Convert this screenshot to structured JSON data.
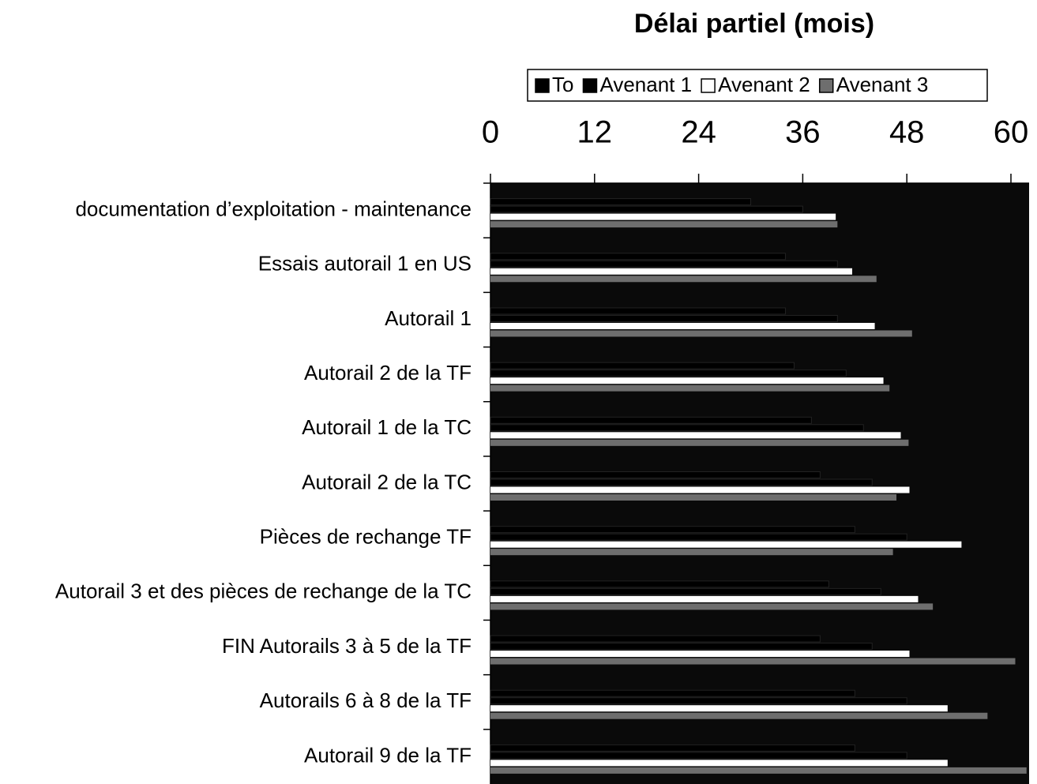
{
  "chart_data": {
    "type": "barh",
    "title": "Délai partiel (mois)",
    "categories": [
      "documentation d’exploitation - maintenance",
      "Essais autorail 1 en US",
      "Autorail 1",
      "Autorail 2 de la TF",
      "Autorail 1 de la TC",
      "Autorail 2 de la TC",
      "Pièces de rechange TF",
      "Autorail 3 et des pièces de rechange de la TC",
      "FIN Autorails 3 à 5 de la TF",
      "Autorails 6 à 8 de la TF",
      "Autorail 9 de la TF"
    ],
    "series": [
      {
        "name": "To",
        "color": "#000000",
        "values": [
          30,
          34,
          34,
          35,
          37,
          38,
          42,
          39,
          38,
          42,
          42
        ]
      },
      {
        "name": "Avenant 1",
        "color": "#000000",
        "values": [
          36,
          40,
          40,
          41,
          43,
          44,
          48,
          45,
          44,
          48,
          48
        ]
      },
      {
        "name": "Avenant 2",
        "color": "#ffffff",
        "values": [
          39.8,
          41.7,
          44.3,
          45.3,
          47.3,
          48.3,
          54.3,
          49.3,
          48.3,
          52.7,
          52.7
        ]
      },
      {
        "name": "Avenant 3",
        "color": "#6e6e6e",
        "values": [
          40,
          44.5,
          48.6,
          46,
          48.2,
          46.8,
          46.4,
          51,
          60.5,
          57.3,
          61.8
        ]
      }
    ],
    "xlim": [
      0,
      60
    ],
    "xticks": [
      0,
      12,
      24,
      36,
      48,
      60
    ],
    "plot_background": "#0a0a0a",
    "legend": "top"
  }
}
